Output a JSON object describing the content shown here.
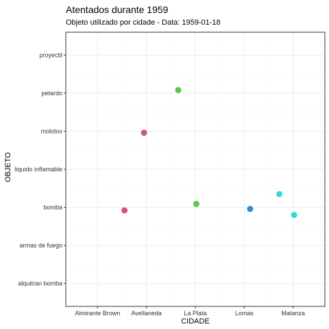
{
  "chart_data": {
    "type": "scatter",
    "title": "Atentados durante 1959",
    "subtitle": "Objeto utilizado por cidade - Data: 1959-01-18",
    "xlabel": "CIDADE",
    "ylabel": "OBJETO",
    "x_categories": [
      "Almirante Brown",
      "Avellaneda",
      "La Plata",
      "Lomas",
      "Matanza"
    ],
    "y_categories": [
      "alquitran bomba",
      "armas de fuego",
      "bomba",
      "liquido inflamable",
      "molotov",
      "petardo",
      "proyectil"
    ],
    "grid": true,
    "legend": "none",
    "points": [
      {
        "x": "Avellaneda",
        "y": "bomba",
        "color": "#d6536d"
      },
      {
        "x": "Avellaneda",
        "y": "molotov",
        "color": "#d6536d"
      },
      {
        "x": "La Plata",
        "y": "petardo",
        "color": "#5ac84a"
      },
      {
        "x": "La Plata",
        "y": "bomba",
        "color": "#5ac84a"
      },
      {
        "x": "Lomas",
        "y": "bomba",
        "color": "#2a8fd6"
      },
      {
        "x": "Matanza",
        "y": "bomba",
        "color": "#37d6e0"
      },
      {
        "x": "Matanza",
        "y": "bomba",
        "color": "#37d6e0"
      }
    ]
  }
}
